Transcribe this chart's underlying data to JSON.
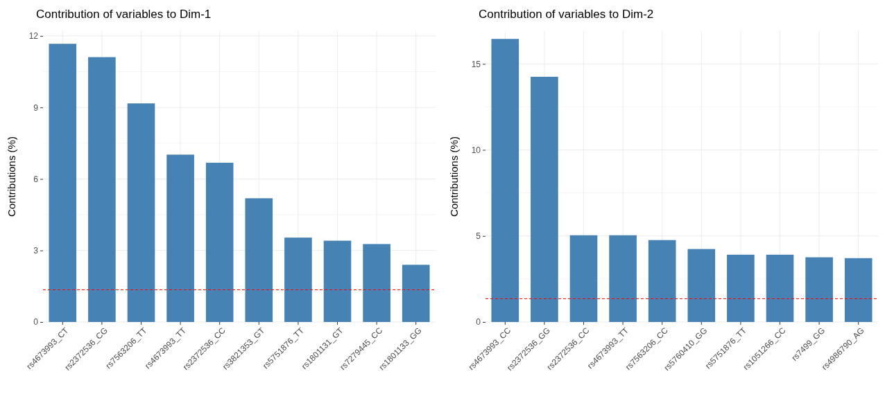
{
  "chart_data": [
    {
      "type": "bar",
      "title": "Contribution of variables to Dim-1",
      "ylabel": "Contributions (%)",
      "categories": [
        "rs4673993_CT",
        "rs2372536_CG",
        "rs7563206_TT",
        "rs4673993_TT",
        "rs2372536_CC",
        "rs3821353_GT",
        "rs5751876_TT",
        "rs1801131_GT",
        "rs7279445_CC",
        "rs1801133_GG"
      ],
      "values": [
        11.67,
        11.11,
        9.17,
        7.02,
        6.68,
        5.19,
        3.54,
        3.41,
        3.27,
        2.4
      ],
      "color": "#4682b4",
      "ylim": [
        0,
        12.2
      ],
      "yticks": [
        0,
        3,
        6,
        9,
        12
      ],
      "grid": true,
      "ref_lines": [
        {
          "axis": "y",
          "value": 1.35,
          "color": "#ff0000",
          "line_style": "dashed"
        }
      ]
    },
    {
      "type": "bar",
      "title": "Contribution of variables to Dim-2",
      "ylabel": "Contributions (%)",
      "categories": [
        "rs4673993_CC",
        "rs2372536_GG",
        "rs2372536_CC",
        "rs4673993_TT",
        "rs7563206_CC",
        "rs5760410_GG",
        "rs5751876_TT",
        "rs1051266_CC",
        "rs7499_GG",
        "rs4986790_AG"
      ],
      "values": [
        16.45,
        14.25,
        5.04,
        5.04,
        4.76,
        4.24,
        3.91,
        3.91,
        3.76,
        3.71
      ],
      "color": "#4682b4",
      "ylim": [
        0,
        16.9
      ],
      "yticks": [
        0,
        5,
        10,
        15
      ],
      "grid": true,
      "ref_lines": [
        {
          "axis": "y",
          "value": 1.35,
          "color": "#ff0000",
          "line_style": "dashed"
        }
      ]
    }
  ]
}
